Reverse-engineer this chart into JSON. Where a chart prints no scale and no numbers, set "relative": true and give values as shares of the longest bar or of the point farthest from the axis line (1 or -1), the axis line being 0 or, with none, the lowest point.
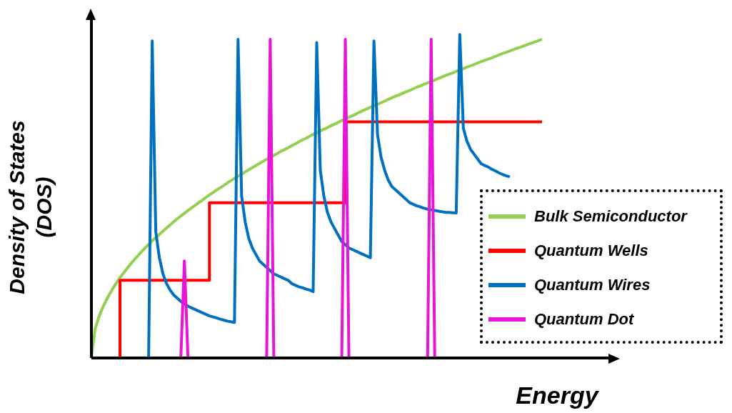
{
  "chart_data": {
    "type": "line",
    "relative": true,
    "xlabel": "Energy",
    "ylabel": "Density of States (DOS)",
    "legend": "bottom right",
    "grid": false,
    "categories": [
      null,
      null,
      null,
      null,
      null,
      null,
      null,
      null,
      null,
      null,
      null,
      null,
      null,
      null,
      null,
      null,
      null,
      null,
      null,
      null,
      null,
      null,
      null,
      null,
      null,
      null,
      null,
      null,
      null,
      null,
      null,
      null,
      null,
      null,
      null,
      null,
      null,
      null,
      null,
      null,
      null,
      null,
      null,
      null,
      null,
      null,
      null,
      null,
      null,
      null,
      null,
      null,
      null,
      null,
      null,
      null,
      null,
      null,
      null,
      null,
      null,
      null,
      null,
      null,
      null,
      null,
      null,
      null,
      null,
      null,
      null,
      null,
      null,
      null,
      null,
      null,
      null,
      null,
      null,
      null,
      null,
      null,
      null,
      null,
      null,
      null,
      null,
      null,
      null,
      null,
      null,
      null,
      null,
      null,
      null,
      null,
      null,
      null,
      null,
      null,
      null,
      null,
      null,
      null,
      null,
      null,
      null,
      null,
      null,
      null,
      null,
      null,
      null,
      null,
      null,
      null,
      null,
      null,
      null,
      null,
      null,
      null,
      null,
      null,
      null,
      null,
      null
    ],
    "series": [
      {
        "name": "Bulk Semiconductor",
        "color": "#92d050",
        "values": [
          0,
          0.088,
          0.124,
          0.152,
          0.175,
          0.196,
          0.215,
          0.232,
          0.248,
          0.263,
          0.277,
          0.291,
          0.304,
          0.316,
          0.328,
          0.34,
          0.351,
          0.362,
          0.372,
          0.382,
          0.392,
          0.402,
          0.411,
          0.421,
          0.43,
          0.439,
          0.447,
          0.456,
          0.464,
          0.472,
          0.48,
          0.488,
          0.496,
          0.504,
          0.511,
          0.519,
          0.526,
          0.533,
          0.541,
          0.548,
          0.555,
          0.562,
          0.568,
          0.575,
          0.582,
          0.588,
          0.595,
          0.601,
          0.608,
          0.614,
          0.62,
          0.626,
          0.632,
          0.639,
          0.644,
          0.65,
          0.656,
          0.662,
          0.668,
          0.674,
          0.679,
          0.685,
          0.691,
          0.696,
          0.702,
          0.707,
          0.712,
          0.718,
          0.723,
          0.728,
          0.734,
          0.739,
          0.744,
          0.749,
          0.754,
          0.76,
          0.765,
          0.77,
          0.775,
          0.779,
          0.784,
          0.789,
          0.794,
          0.799,
          0.804,
          0.809,
          0.813,
          0.818,
          0.823,
          0.827,
          0.832,
          0.837,
          0.841,
          0.846,
          0.85,
          0.855,
          0.859,
          0.864,
          0.868,
          0.873,
          0.877,
          0.881,
          0.886,
          0.89,
          0.894,
          0.899,
          0.903,
          0.907,
          0.912,
          0.916,
          0.92,
          0.924,
          0.928,
          0.932,
          0.937,
          0.941,
          0.945,
          0.949,
          0.953,
          0.957,
          0.961,
          0.965,
          0.969,
          0.973,
          0.977,
          0.981,
          0.985
        ]
      },
      {
        "name": "Quantum Wells",
        "type": "step",
        "color": "#ff0000",
        "values": [
          null,
          null,
          null,
          null,
          null,
          null,
          null,
          0,
          0.24,
          0.24,
          0.24,
          0.24,
          0.24,
          0.24,
          0.24,
          0.24,
          0.24,
          0.24,
          0.24,
          0.24,
          0.24,
          0.24,
          0.24,
          0.24,
          0.24,
          0.24,
          0.24,
          0.24,
          0.24,
          0.24,
          0.24,
          0.24,
          0.24,
          0.48,
          0.48,
          0.48,
          0.48,
          0.48,
          0.48,
          0.48,
          0.48,
          0.48,
          0.48,
          0.48,
          0.48,
          0.48,
          0.48,
          0.48,
          0.48,
          0.48,
          0.48,
          0.48,
          0.48,
          0.48,
          0.48,
          0.48,
          0.48,
          0.48,
          0.48,
          0.48,
          0.48,
          0.48,
          0.48,
          0.48,
          0.48,
          0.48,
          0.48,
          0.48,
          0.48,
          0.48,
          0.48,
          0.73,
          0.73,
          0.73,
          0.73,
          0.73,
          0.73,
          0.73,
          0.73,
          0.73,
          0.73,
          0.73,
          0.73,
          0.73,
          0.73,
          0.73,
          0.73,
          0.73,
          0.73,
          0.73,
          0.73,
          0.73,
          0.73,
          0.73,
          0.73,
          0.73,
          0.73,
          0.73,
          0.73,
          0.73,
          0.73,
          0.73,
          0.73,
          0.73,
          0.73,
          0.73,
          0.73,
          0.73,
          0.73,
          0.73,
          0.73,
          0.73,
          0.73,
          0.73,
          0.73,
          0.73,
          0.73,
          0.73,
          0.73,
          0.73,
          0.73,
          0.73,
          0.73,
          0.73,
          0.73,
          0.73,
          0.73
        ]
      },
      {
        "name": "Quantum Wires",
        "color": "#0070c0",
        "values": [
          null,
          null,
          null,
          null,
          null,
          null,
          null,
          null,
          null,
          null,
          null,
          null,
          null,
          null,
          null,
          null,
          0,
          0.98,
          0.39,
          0.31,
          0.26,
          0.23,
          0.21,
          0.195,
          0.185,
          0.175,
          0.167,
          0.16,
          0.155,
          0.15,
          0.145,
          0.14,
          0.135,
          0.13,
          0.127,
          0.124,
          0.12,
          0.117,
          0.114,
          0.112,
          0.11,
          0.985,
          0.5,
          0.42,
          0.37,
          0.34,
          0.32,
          0.3,
          0.29,
          0.28,
          0.27,
          0.26,
          0.255,
          0.25,
          0.245,
          0.24,
          0.23,
          0.225,
          0.22,
          0.217,
          0.213,
          0.21,
          0.205,
          0.975,
          0.58,
          0.5,
          0.45,
          0.42,
          0.4,
          0.38,
          0.36,
          0.35,
          0.34,
          0.335,
          0.33,
          0.325,
          0.32,
          0.315,
          0.31,
          0.98,
          0.69,
          0.62,
          0.58,
          0.55,
          0.53,
          0.52,
          0.51,
          0.5,
          0.49,
          0.48,
          0.475,
          0.47,
          0.467,
          0.463,
          0.46,
          0.458,
          0.456,
          0.454,
          0.452,
          0.45,
          0.45,
          0.449,
          0.448,
          1,
          0.71,
          0.67,
          0.645,
          0.63,
          0.615,
          0.6,
          0.595,
          0.59,
          0.583,
          0.578,
          0.572,
          0.567,
          0.563,
          0.56,
          null,
          null,
          null,
          null,
          null,
          null,
          null,
          null,
          null
        ]
      },
      {
        "name": "Quantum Dot",
        "color": "#e815d8",
        "values": [
          null,
          null,
          null,
          null,
          null,
          null,
          null,
          null,
          null,
          null,
          null,
          null,
          null,
          null,
          null,
          null,
          null,
          null,
          null,
          null,
          null,
          null,
          null,
          null,
          null,
          0,
          0.3,
          0,
          null,
          null,
          null,
          null,
          null,
          null,
          null,
          null,
          null,
          null,
          null,
          null,
          null,
          null,
          null,
          null,
          null,
          null,
          null,
          null,
          null,
          0,
          0.985,
          0,
          null,
          null,
          null,
          null,
          null,
          null,
          null,
          null,
          null,
          null,
          null,
          null,
          null,
          null,
          null,
          null,
          null,
          null,
          0,
          0.985,
          0,
          null,
          null,
          null,
          null,
          null,
          null,
          null,
          null,
          null,
          null,
          null,
          null,
          null,
          null,
          null,
          null,
          null,
          null,
          null,
          null,
          null,
          0,
          0.985,
          0,
          null,
          null,
          null,
          null,
          null,
          null,
          null,
          null,
          null,
          null,
          null,
          null,
          null,
          null,
          null,
          null,
          null,
          null,
          null,
          null,
          null,
          null,
          null,
          null,
          null,
          null,
          null,
          null,
          null,
          null
        ]
      }
    ]
  }
}
